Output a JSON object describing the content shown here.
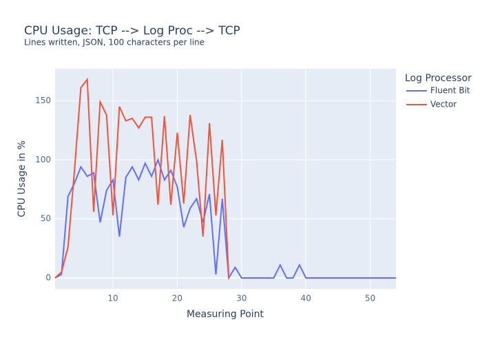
{
  "chart_data": {
    "type": "line",
    "title": "CPU Usage: TCP --> Log Proc --> TCP",
    "subtitle": "Lines written, JSON, 100 characters per line",
    "xlabel": "Measuring Point",
    "ylabel": "CPU Usage in %",
    "legend_title": "Log Processor",
    "x": [
      1,
      2,
      3,
      4,
      5,
      6,
      7,
      8,
      9,
      10,
      11,
      12,
      13,
      14,
      15,
      16,
      17,
      18,
      19,
      20,
      21,
      22,
      23,
      24,
      25,
      26,
      27,
      28,
      29,
      30,
      31,
      32,
      33,
      34,
      35,
      36,
      37,
      38,
      39,
      40,
      41,
      42,
      43,
      44,
      45,
      46,
      47,
      48,
      49,
      50,
      51,
      52,
      53,
      54
    ],
    "series": [
      {
        "name": "Fluent Bit",
        "color": "#636efa",
        "values": [
          0,
          3,
          69,
          80,
          94,
          86,
          89,
          47,
          74,
          83,
          35,
          85,
          94,
          83,
          97,
          86,
          100,
          83,
          91,
          77,
          43,
          59,
          67,
          47,
          71,
          3,
          67,
          0,
          9,
          0,
          0,
          0,
          0,
          0,
          0,
          11,
          0,
          0,
          11,
          0,
          0,
          0,
          0,
          0,
          0,
          0,
          0,
          0,
          0,
          0,
          0,
          0,
          0,
          0
        ]
      },
      {
        "name": "Vector",
        "color": "#ef553b",
        "values": [
          0,
          5,
          26,
          90,
          161,
          168,
          56,
          149,
          138,
          53,
          145,
          133,
          135,
          127,
          136,
          136,
          62,
          137,
          62,
          123,
          63,
          138,
          99,
          35,
          131,
          53,
          117,
          0,
          null,
          null,
          null,
          null,
          null,
          null,
          null,
          null,
          null,
          null,
          null,
          null,
          null,
          null,
          null,
          null,
          null,
          null,
          null,
          null,
          null,
          null,
          null,
          null,
          null,
          null
        ]
      }
    ],
    "xlim": [
      1,
      54
    ],
    "ylim": [
      -9.3,
      177
    ],
    "xticks": [
      10,
      20,
      30,
      40,
      50
    ],
    "yticks": [
      0,
      50,
      100,
      150
    ],
    "grid": true,
    "legend": "right"
  }
}
